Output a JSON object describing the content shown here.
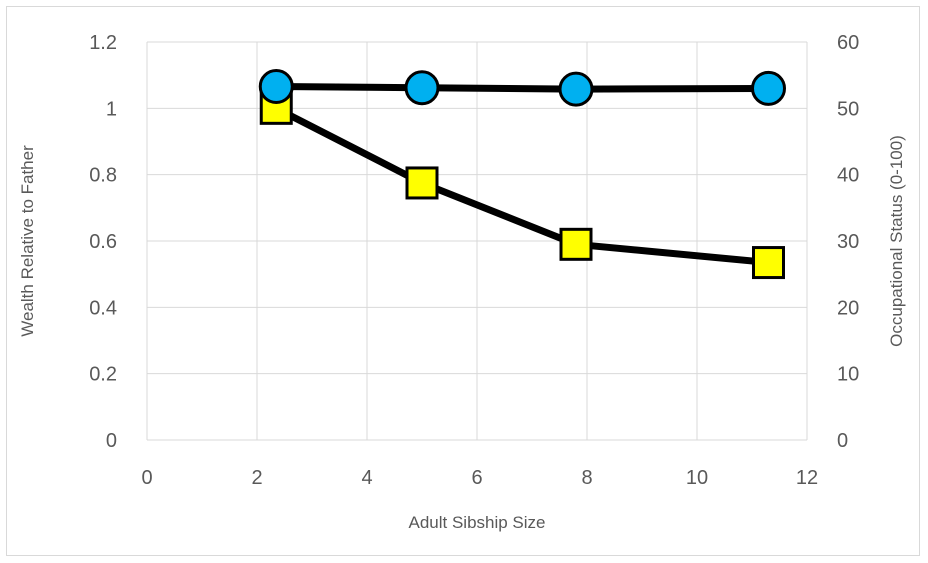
{
  "chart_data": {
    "type": "line",
    "title": "",
    "xlabel": "Adult Sibship Size",
    "ylabel": "Wealth Relative to Father",
    "y2label": "Occupational Status (0-100)",
    "xlim": [
      0,
      12
    ],
    "ylim": [
      0,
      1.2
    ],
    "y2lim": [
      0,
      60
    ],
    "x_ticks": [
      "0",
      "2",
      "4",
      "6",
      "8",
      "10",
      "12"
    ],
    "y_ticks": [
      "0",
      "0.2",
      "0.4",
      "0.6",
      "0.8",
      "1",
      "1.2"
    ],
    "y2_ticks": [
      "0",
      "10",
      "20",
      "30",
      "40",
      "50",
      "60"
    ],
    "grid": true,
    "series": [
      {
        "axis": "left",
        "marker": "square",
        "color": "#ffff00",
        "x": [
          2.35,
          5.0,
          7.8,
          11.3
        ],
        "y": [
          1.0,
          0.775,
          0.59,
          0.535
        ]
      },
      {
        "axis": "right",
        "marker": "circle",
        "color": "#00b0f0",
        "x": [
          2.35,
          5.0,
          7.8,
          11.3
        ],
        "y": [
          53.3,
          53.1,
          52.9,
          53.0
        ]
      }
    ]
  }
}
